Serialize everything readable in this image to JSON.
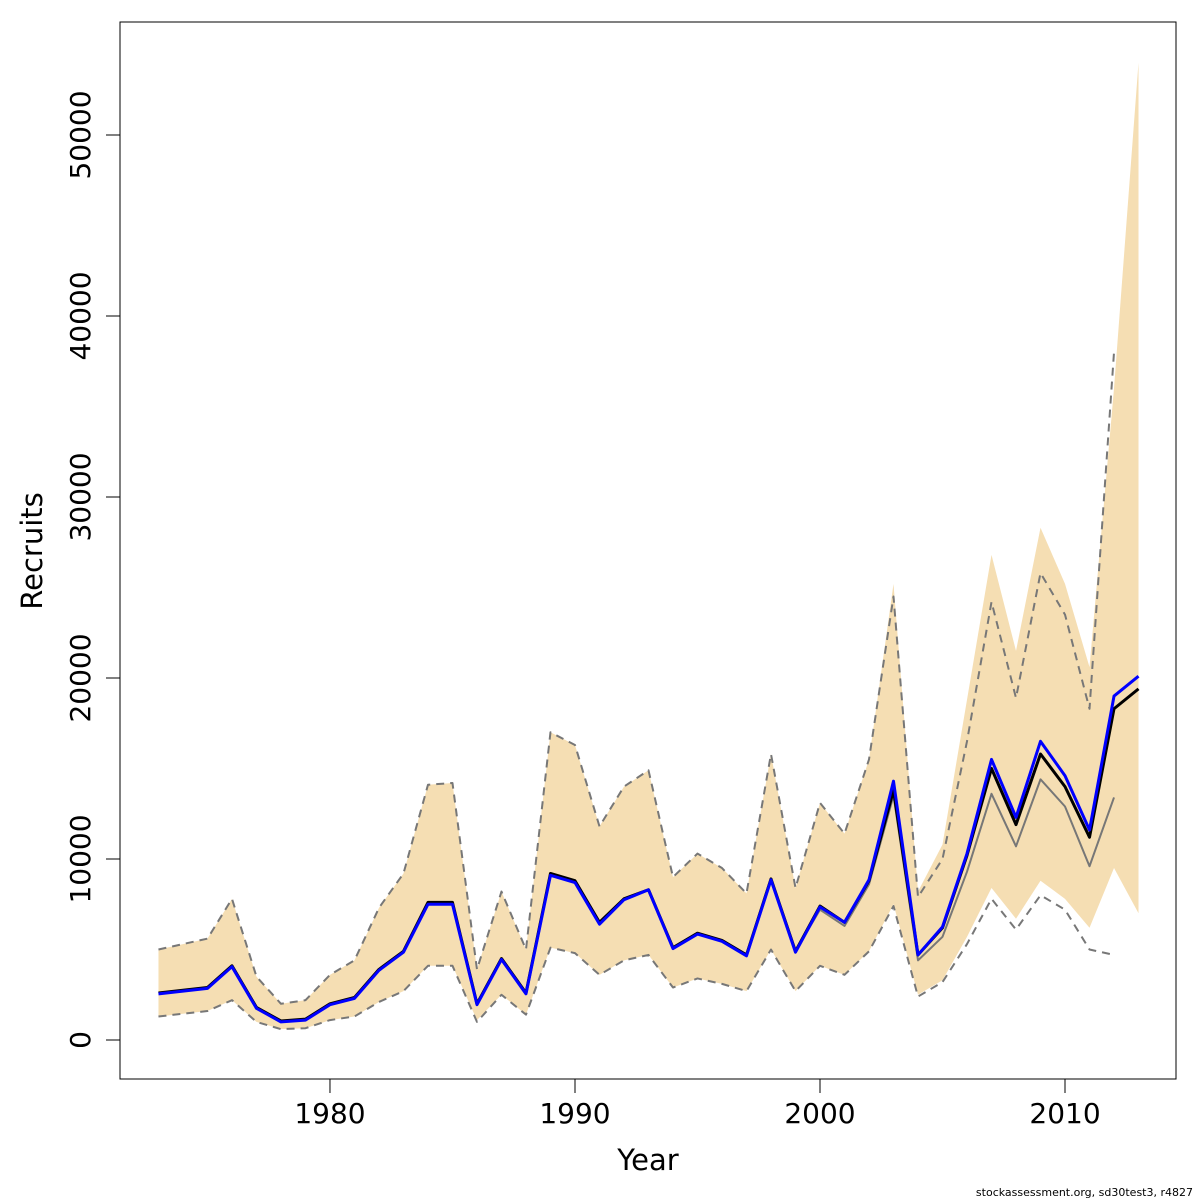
{
  "chart_data": {
    "type": "line",
    "x_label": "Year",
    "y_label": "Recruits",
    "caption": "stockassessment.org, sd30test3, r4827",
    "x": [
      1973,
      1974,
      1975,
      1976,
      1977,
      1978,
      1979,
      1980,
      1981,
      1982,
      1983,
      1984,
      1985,
      1986,
      1987,
      1988,
      1989,
      1990,
      1991,
      1992,
      1993,
      1994,
      1995,
      1996,
      1997,
      1998,
      1999,
      2000,
      2001,
      2002,
      2003,
      2004,
      2005,
      2006,
      2007,
      2008,
      2009,
      2010,
      2011,
      2012,
      2013
    ],
    "band": {
      "color": "#f5deb3",
      "upper": [
        5000,
        5300,
        5600,
        7800,
        3500,
        2000,
        2200,
        3600,
        4400,
        7300,
        9200,
        14100,
        14200,
        3900,
        8200,
        5000,
        17000,
        16300,
        11800,
        14000,
        14900,
        9000,
        10300,
        9500,
        8100,
        15800,
        8400,
        13100,
        11400,
        15500,
        25200,
        8200,
        10800,
        18800,
        26800,
        21500,
        28300,
        25200,
        20600,
        36000,
        54000
      ],
      "lower": [
        1300,
        1450,
        1600,
        2200,
        1000,
        600,
        650,
        1100,
        1300,
        2100,
        2700,
        4100,
        4100,
        1100,
        2500,
        1400,
        5100,
        4800,
        3600,
        4400,
        4700,
        2900,
        3400,
        3100,
        2700,
        5000,
        2700,
        4100,
        3600,
        4900,
        7500,
        2500,
        3300,
        5700,
        8400,
        6700,
        8800,
        7800,
        6200,
        9500,
        7000
      ]
    },
    "series": [
      {
        "color": "#777777",
        "dashed": true,
        "width": 2,
        "values": [
          5000,
          5300,
          5600,
          7800,
          3500,
          2000,
          2200,
          3600,
          4400,
          7300,
          9200,
          14100,
          14200,
          3900,
          8200,
          5000,
          17000,
          16300,
          11800,
          14000,
          14900,
          9000,
          10300,
          9500,
          8100,
          15800,
          8400,
          13100,
          11400,
          15500,
          24500,
          7900,
          10000,
          16500,
          24200,
          18900,
          25800,
          23500,
          18300,
          38000,
          null
        ]
      },
      {
        "color": "#777777",
        "dashed": true,
        "width": 2,
        "values": [
          1300,
          1450,
          1600,
          2200,
          1000,
          600,
          650,
          1100,
          1300,
          2100,
          2700,
          4100,
          4100,
          1000,
          2500,
          1400,
          5100,
          4800,
          3600,
          4400,
          4700,
          2900,
          3400,
          3100,
          2700,
          5000,
          2700,
          4100,
          3600,
          4900,
          7400,
          2400,
          3200,
          5300,
          7800,
          6100,
          8000,
          7200,
          5000,
          4700,
          null
        ]
      },
      {
        "color": "#777777",
        "dashed": false,
        "width": 2,
        "values": [
          2600,
          2750,
          2900,
          4100,
          1800,
          1050,
          1150,
          2000,
          2350,
          3900,
          4900,
          7600,
          7600,
          2000,
          4500,
          2600,
          9200,
          8800,
          6500,
          7800,
          8300,
          5100,
          5900,
          5500,
          4700,
          8900,
          4900,
          7200,
          6300,
          8600,
          13500,
          4400,
          5700,
          9300,
          13600,
          10700,
          14400,
          12900,
          9600,
          13400,
          null
        ]
      },
      {
        "color": "#000000",
        "dashed": false,
        "width": 3,
        "values": [
          2600,
          2750,
          2900,
          4100,
          1800,
          1050,
          1150,
          2000,
          2350,
          3900,
          4900,
          7600,
          7600,
          2000,
          4500,
          2600,
          9200,
          8800,
          6500,
          7800,
          8300,
          5100,
          5900,
          5500,
          4700,
          8900,
          4900,
          7400,
          6500,
          8800,
          13800,
          4700,
          6200,
          10200,
          15000,
          11900,
          15800,
          14000,
          11200,
          18300,
          19400
        ]
      },
      {
        "color": "#0000ff",
        "dashed": false,
        "width": 3,
        "values": [
          2550,
          2700,
          2850,
          4050,
          1750,
          1000,
          1100,
          1950,
          2300,
          3850,
          4850,
          7500,
          7500,
          1950,
          4450,
          2550,
          9100,
          8700,
          6400,
          7750,
          8300,
          5050,
          5850,
          5450,
          4650,
          8850,
          4850,
          7350,
          6500,
          8850,
          14300,
          4700,
          6250,
          10300,
          15500,
          12300,
          16500,
          14600,
          11600,
          19000,
          20100
        ]
      }
    ],
    "xlim": [
      1971.43,
      2014.53
    ],
    "ylim": [
      -2155,
      56243
    ],
    "xticks": [
      1980,
      1990,
      2000,
      2010
    ],
    "yticks": [
      0,
      10000,
      20000,
      30000,
      40000,
      50000
    ]
  }
}
